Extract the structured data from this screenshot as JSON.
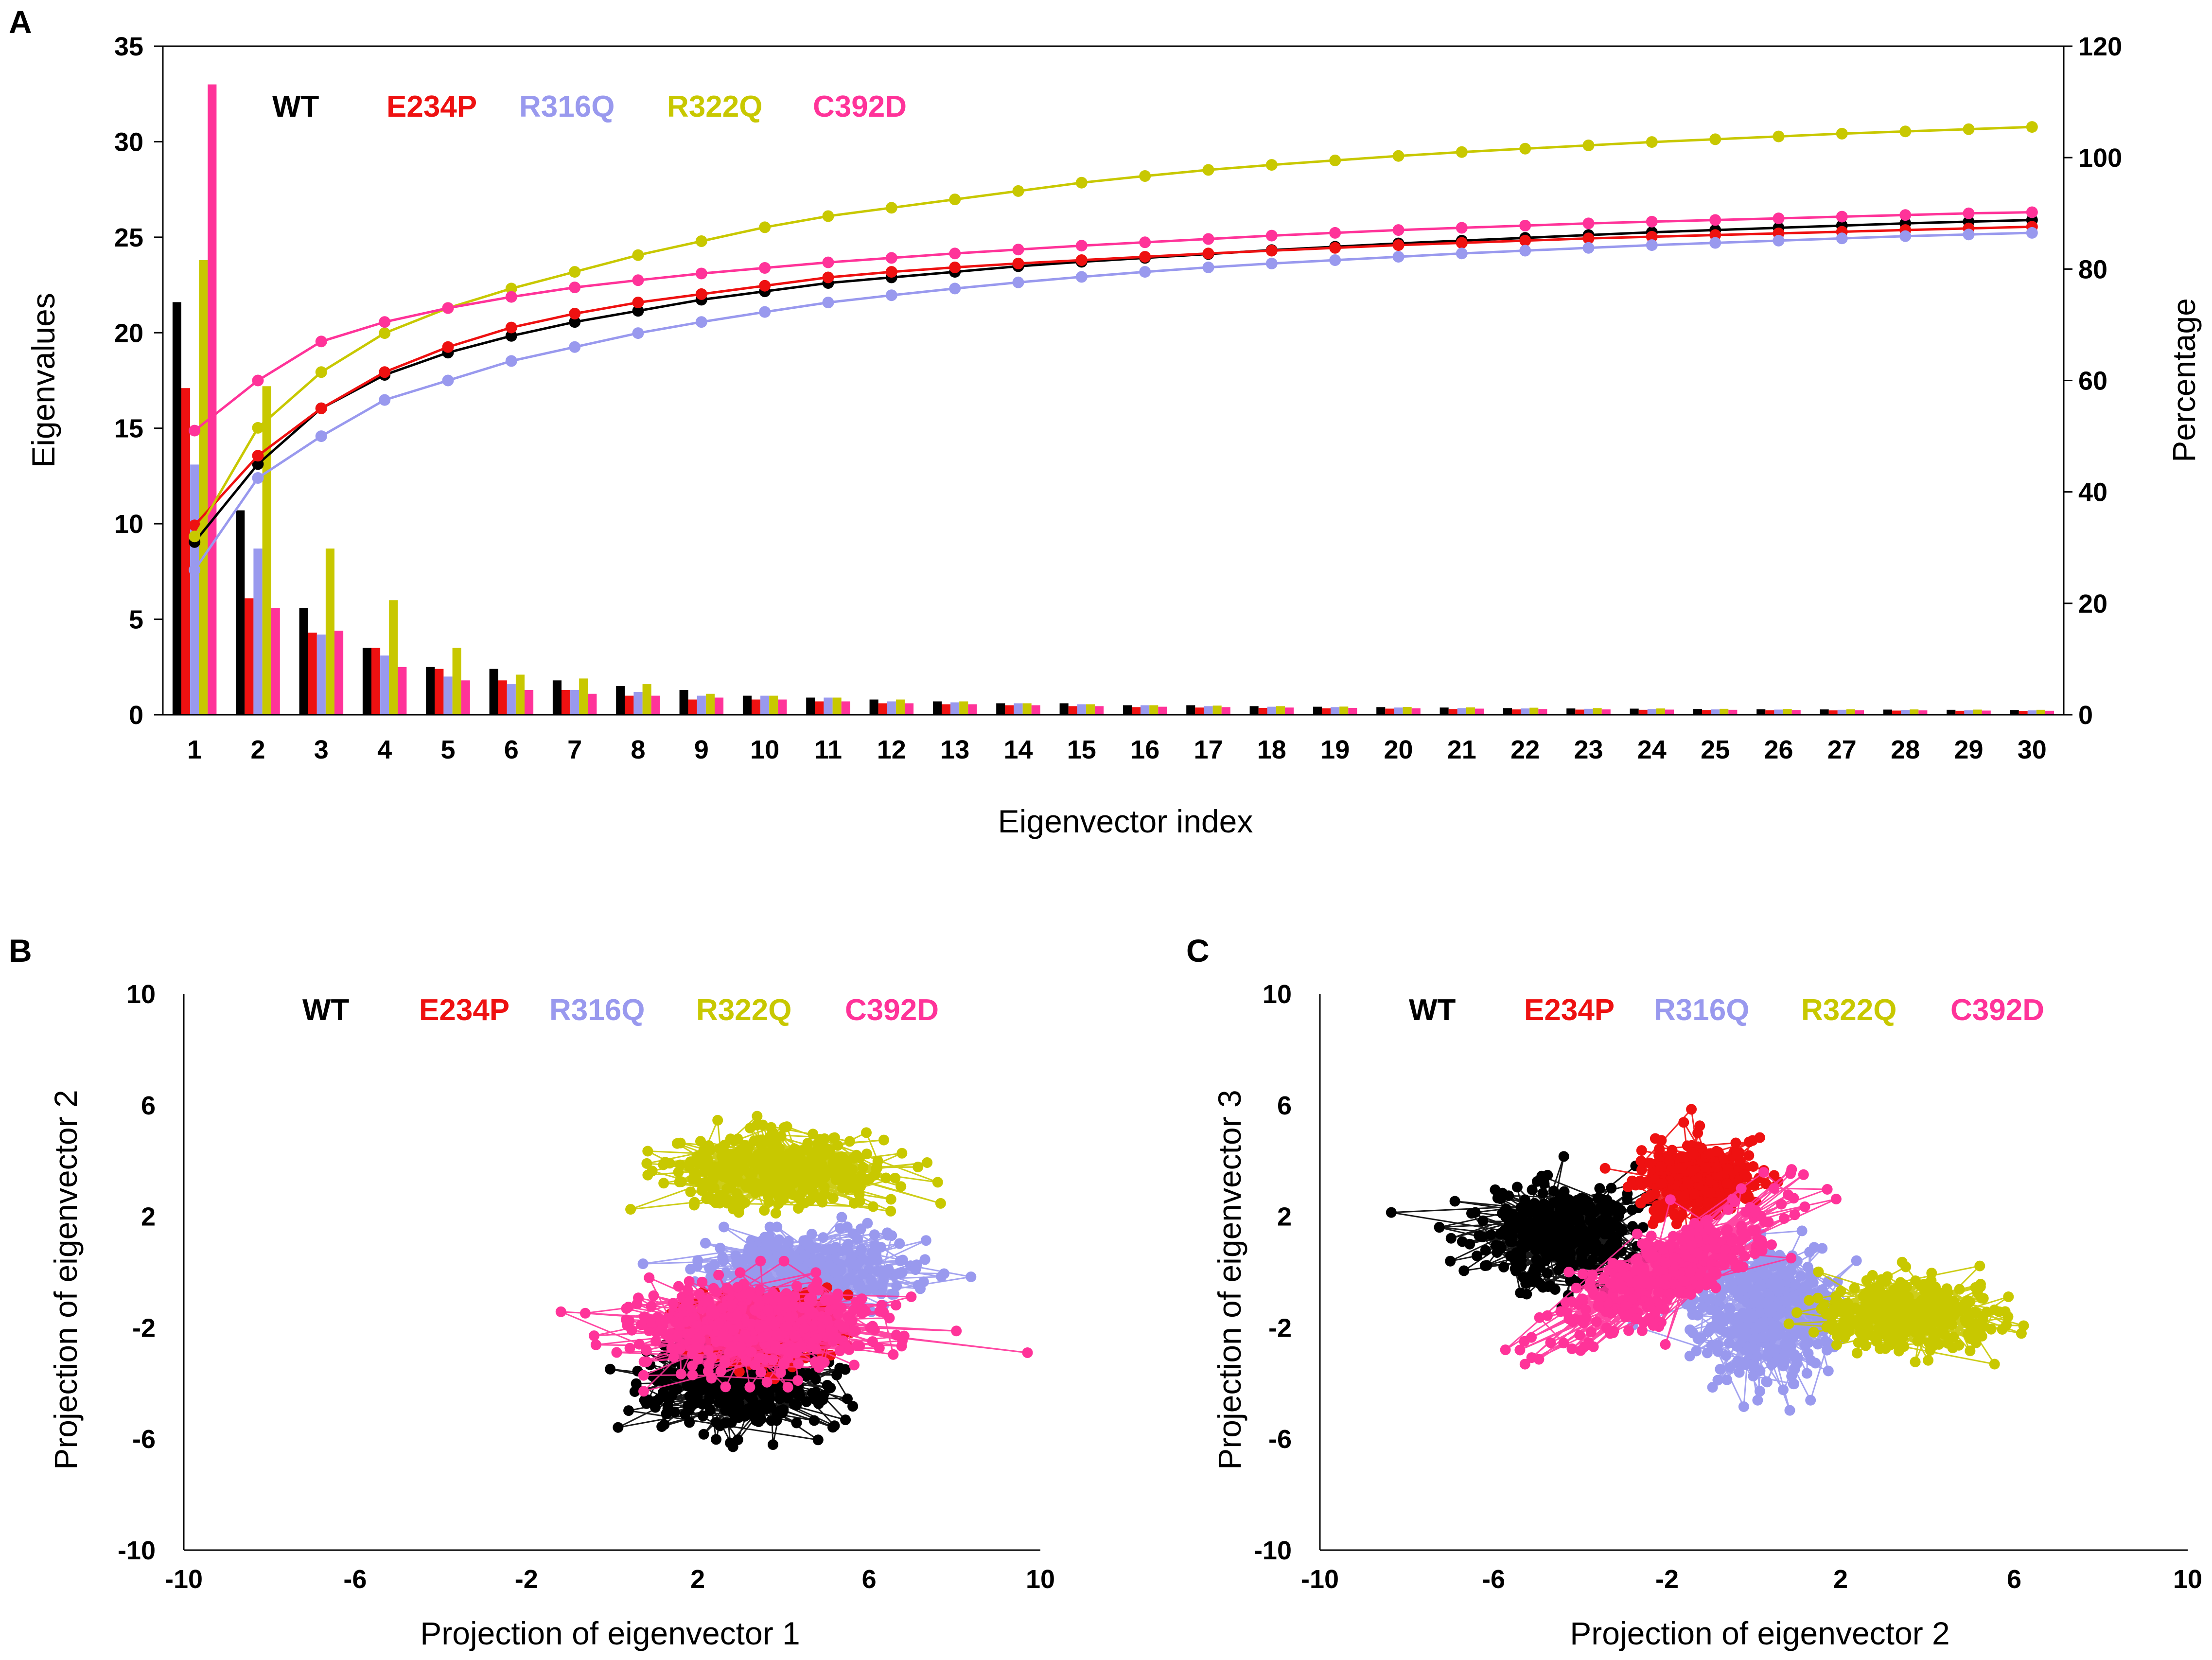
{
  "colors": {
    "WT": "#000000",
    "E234P": "#ee1111",
    "R316Q": "#9999ee",
    "R322Q": "#c8c800",
    "C392D": "#ff3399"
  },
  "chart_data": [
    {
      "panel": "A",
      "type": "bar",
      "title": "",
      "xlabel": "Eigenvector index",
      "ylabel": "Eigenvalues",
      "ylabel_right": "Percentage",
      "ylim": [
        0,
        35
      ],
      "ylim_right": [
        0,
        120
      ],
      "yticks": [
        "0",
        "5",
        "10",
        "15",
        "20",
        "25",
        "30",
        "35"
      ],
      "yticks_right": [
        "0",
        "20",
        "40",
        "60",
        "80",
        "100",
        "120"
      ],
      "categories": [
        "1",
        "2",
        "3",
        "4",
        "5",
        "6",
        "7",
        "8",
        "9",
        "10",
        "11",
        "12",
        "13",
        "14",
        "15",
        "16",
        "17",
        "18",
        "19",
        "20",
        "21",
        "22",
        "23",
        "24",
        "25",
        "26",
        "27",
        "28",
        "29",
        "30"
      ],
      "legend": [
        "WT",
        "E234P",
        "R316Q",
        "R322Q",
        "C392D"
      ],
      "series": [
        {
          "name": "WT",
          "values": [
            21.6,
            10.7,
            5.6,
            3.5,
            2.5,
            2.4,
            1.8,
            1.5,
            1.3,
            1.0,
            0.9,
            0.8,
            0.7,
            0.6,
            0.6,
            0.5,
            0.5,
            0.45,
            0.42,
            0.4,
            0.38,
            0.35,
            0.33,
            0.32,
            0.3,
            0.29,
            0.28,
            0.27,
            0.26,
            0.25
          ]
        },
        {
          "name": "E234P",
          "values": [
            17.1,
            6.1,
            4.3,
            3.5,
            2.4,
            1.8,
            1.3,
            1.0,
            0.8,
            0.8,
            0.7,
            0.6,
            0.55,
            0.5,
            0.45,
            0.4,
            0.38,
            0.36,
            0.34,
            0.32,
            0.3,
            0.28,
            0.27,
            0.26,
            0.25,
            0.24,
            0.23,
            0.22,
            0.21,
            0.2
          ]
        },
        {
          "name": "R316Q",
          "values": [
            13.1,
            8.7,
            4.2,
            3.1,
            2.0,
            1.6,
            1.3,
            1.2,
            1.0,
            1.0,
            0.9,
            0.7,
            0.65,
            0.6,
            0.55,
            0.5,
            0.45,
            0.42,
            0.4,
            0.38,
            0.35,
            0.33,
            0.31,
            0.3,
            0.28,
            0.27,
            0.26,
            0.25,
            0.24,
            0.23
          ]
        },
        {
          "name": "R322Q",
          "values": [
            23.8,
            17.2,
            8.7,
            6.0,
            3.5,
            2.1,
            1.9,
            1.6,
            1.1,
            1.0,
            0.9,
            0.8,
            0.7,
            0.6,
            0.55,
            0.5,
            0.48,
            0.45,
            0.43,
            0.41,
            0.39,
            0.37,
            0.35,
            0.33,
            0.31,
            0.3,
            0.29,
            0.28,
            0.27,
            0.26
          ]
        },
        {
          "name": "C392D",
          "values": [
            33.0,
            5.6,
            4.4,
            2.5,
            1.8,
            1.3,
            1.1,
            1.0,
            0.9,
            0.8,
            0.7,
            0.6,
            0.55,
            0.5,
            0.45,
            0.42,
            0.4,
            0.38,
            0.36,
            0.34,
            0.32,
            0.3,
            0.28,
            0.27,
            0.26,
            0.25,
            0.24,
            0.23,
            0.22,
            0.21
          ]
        }
      ],
      "cumulative_percentage": [
        {
          "name": "WT",
          "values": [
            31,
            45,
            55,
            61,
            65,
            68,
            70.5,
            72.5,
            74.5,
            76,
            77.5,
            78.5,
            79.5,
            80.5,
            81.3,
            82,
            82.7,
            83.4,
            84,
            84.6,
            85.1,
            85.6,
            86.1,
            86.6,
            87,
            87.4,
            87.8,
            88.2,
            88.5,
            88.8
          ]
        },
        {
          "name": "E234P",
          "values": [
            34,
            46.5,
            55,
            61.5,
            66,
            69.5,
            72,
            74,
            75.5,
            77,
            78.5,
            79.5,
            80.3,
            81,
            81.6,
            82.2,
            82.8,
            83.3,
            83.8,
            84.3,
            84.7,
            85.1,
            85.5,
            85.8,
            86.1,
            86.4,
            86.7,
            87,
            87.3,
            87.6
          ]
        },
        {
          "name": "R316Q",
          "values": [
            26,
            42.5,
            50,
            56.5,
            60,
            63.5,
            66,
            68.5,
            70.5,
            72.3,
            74,
            75.3,
            76.5,
            77.6,
            78.6,
            79.5,
            80.3,
            81,
            81.6,
            82.2,
            82.8,
            83.3,
            83.8,
            84.3,
            84.7,
            85.1,
            85.5,
            85.9,
            86.2,
            86.5
          ]
        },
        {
          "name": "R322Q",
          "values": [
            32,
            51.5,
            61.5,
            68.5,
            73,
            76.5,
            79.5,
            82.5,
            85,
            87.5,
            89.5,
            91,
            92.5,
            94,
            95.5,
            96.7,
            97.8,
            98.7,
            99.5,
            100.3,
            101,
            101.6,
            102.2,
            102.8,
            103.3,
            103.8,
            104.3,
            104.7,
            105.1,
            105.5
          ]
        },
        {
          "name": "C392D",
          "values": [
            51,
            60,
            67,
            70.5,
            73,
            75,
            76.7,
            78,
            79.2,
            80.2,
            81.2,
            82,
            82.8,
            83.5,
            84.2,
            84.8,
            85.4,
            86,
            86.5,
            87,
            87.4,
            87.8,
            88.2,
            88.5,
            88.8,
            89.1,
            89.4,
            89.7,
            90,
            90.2
          ]
        }
      ]
    },
    {
      "panel": "B",
      "type": "scatter",
      "title": "",
      "xlabel": "Projection of eigenvector 1",
      "ylabel": "Projection of eigenvector 2",
      "xlim": [
        -10,
        10
      ],
      "ylim": [
        -10,
        10
      ],
      "xticks": [
        "-10",
        "-6",
        "-2",
        "2",
        "6",
        "10"
      ],
      "yticks": [
        "10",
        "6",
        "2",
        "-2",
        "-6",
        "-10"
      ],
      "legend": [
        "WT",
        "E234P",
        "R316Q",
        "R322Q",
        "C392D"
      ],
      "clusters": [
        {
          "name": "WT",
          "center": [
            3.0,
            -4.0
          ],
          "spread": [
            2.0,
            1.5
          ]
        },
        {
          "name": "R316Q",
          "center": [
            4.5,
            0.0
          ],
          "spread": [
            2.2,
            1.3
          ]
        },
        {
          "name": "R322Q",
          "center": [
            3.8,
            3.6
          ],
          "spread": [
            2.4,
            1.2
          ]
        },
        {
          "name": "E234P",
          "center": [
            3.5,
            -2.0
          ],
          "spread": [
            1.5,
            1.0
          ]
        },
        {
          "name": "C392D",
          "center": [
            3.5,
            -2.0
          ],
          "spread": [
            2.8,
            1.4
          ]
        }
      ]
    },
    {
      "panel": "C",
      "type": "scatter",
      "title": "",
      "xlabel": "Projection of eigenvector 2",
      "ylabel": "Projection of eigenvector 3",
      "xlim": [
        -10,
        10
      ],
      "ylim": [
        -10,
        10
      ],
      "xticks": [
        "-10",
        "-6",
        "-2",
        "2",
        "6",
        "10"
      ],
      "yticks": [
        "10",
        "6",
        "2",
        "-2",
        "-6",
        "-10"
      ],
      "legend": [
        "WT",
        "E234P",
        "R316Q",
        "R322Q",
        "C392D"
      ],
      "clusters": [
        {
          "name": "WT",
          "center": [
            -4.5,
            1.3
          ],
          "spread": [
            1.7,
            1.6
          ]
        },
        {
          "name": "E234P",
          "center": [
            -1.3,
            3.3
          ],
          "spread": [
            1.1,
            1.2
          ]
        },
        {
          "name": "R316Q",
          "center": [
            0.3,
            -1.5
          ],
          "spread": [
            1.5,
            2.3
          ]
        },
        {
          "name": "R322Q",
          "center": [
            3.5,
            -1.5
          ],
          "spread": [
            1.8,
            1.1
          ]
        },
        {
          "name": "C392D",
          "center": [
            -2.0,
            0.0
          ],
          "spread": [
            2.3,
            1.3
          ],
          "tilt": 0.75
        }
      ]
    }
  ]
}
